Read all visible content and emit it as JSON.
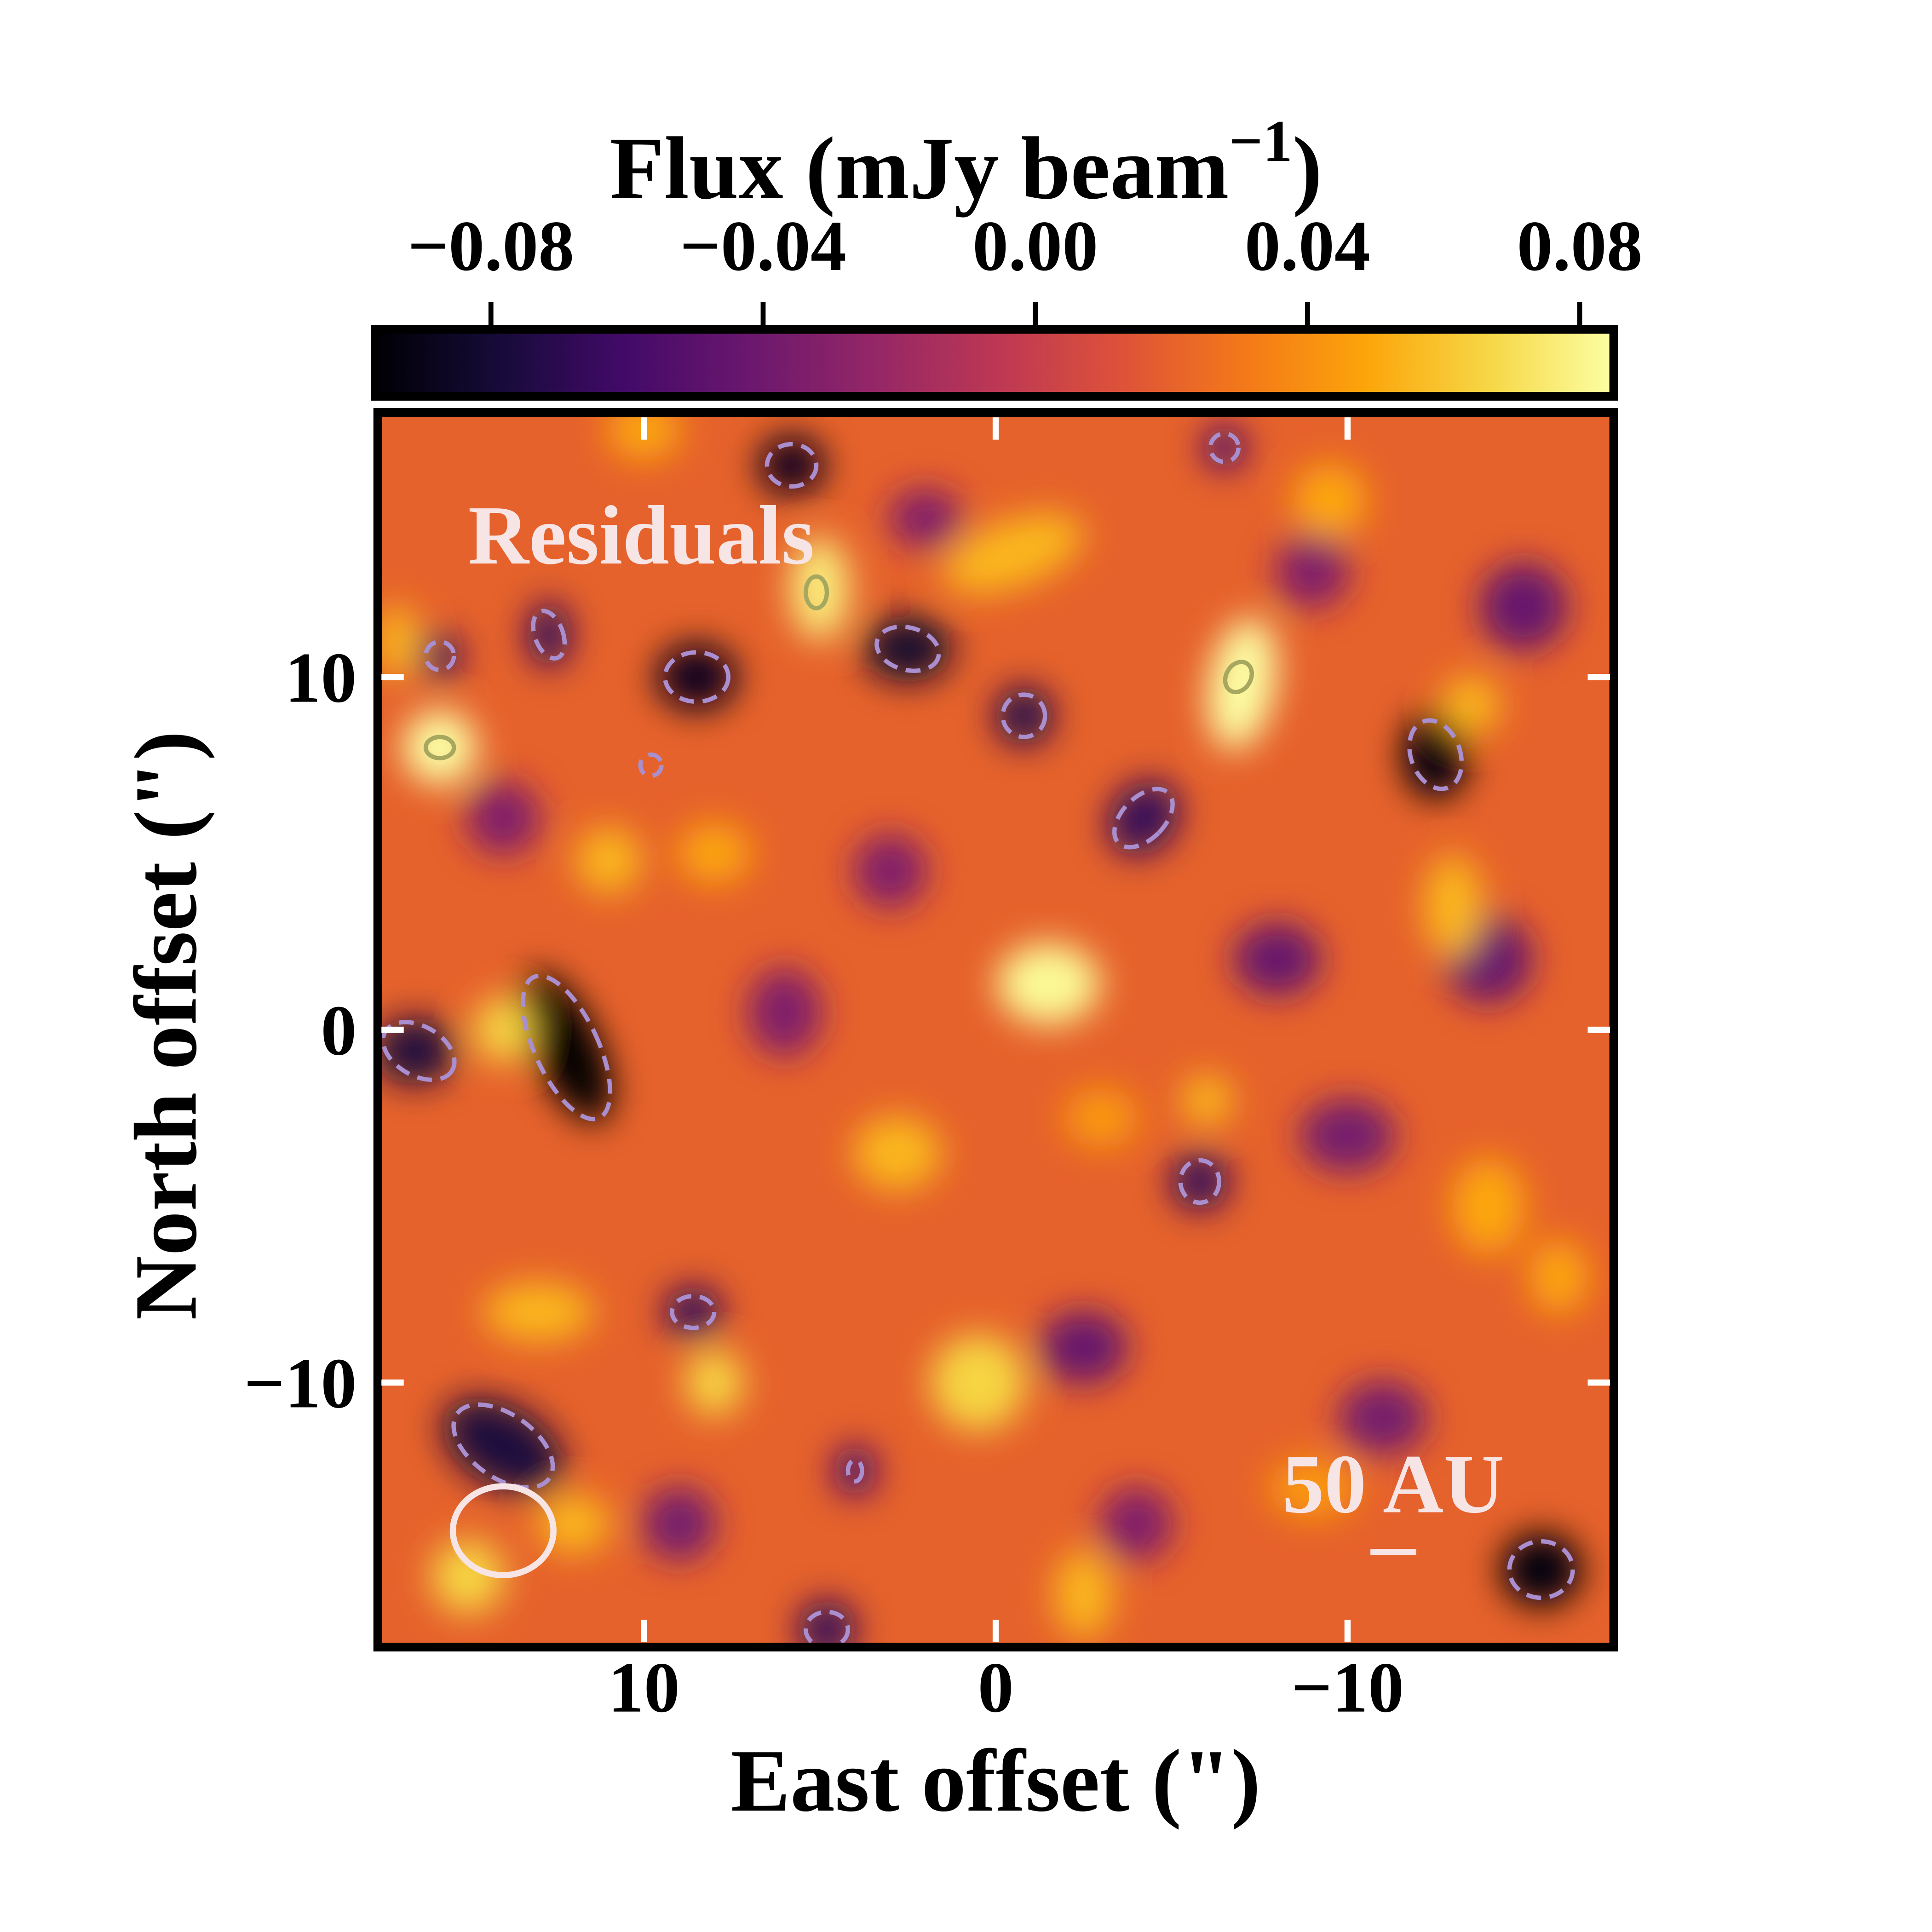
{
  "chart_data": {
    "type": "heatmap",
    "title": "",
    "panel_label": "Residuals",
    "xlabel": "East offset (\")",
    "ylabel": "North offset (\")",
    "xlim": [
      17.6,
      -17.6
    ],
    "ylim": [
      -17.5,
      17.5
    ],
    "xticks": [
      10,
      0,
      -10
    ],
    "xtick_labels": [
      "10",
      "0",
      "−10"
    ],
    "yticks": [
      10,
      0,
      -10
    ],
    "ytick_labels": [
      "10",
      "0",
      "−10"
    ],
    "colorbar": {
      "label": "Flux (mJy beam",
      "label_sup": "−1",
      "label_close": ")",
      "colormap": "inferno",
      "range": [
        -0.097,
        0.085
      ],
      "ticks": [
        -0.08,
        -0.04,
        0.0,
        0.04,
        0.08
      ],
      "tick_labels": [
        "−0.08",
        "−0.04",
        "0.00",
        "0.04",
        "0.08"
      ],
      "placement": "top"
    },
    "background_flux": 0.02,
    "features": [
      {
        "x": 12.2,
        "y": -0.5,
        "flux": -0.097,
        "sx": 0.9,
        "sy": 2.2,
        "rot": -25
      },
      {
        "x": 16.5,
        "y": -0.6,
        "flux": -0.07,
        "sx": 1.1,
        "sy": 0.9,
        "rot": 0
      },
      {
        "x": 8.5,
        "y": 10,
        "flux": -0.08,
        "sx": 1.1,
        "sy": 0.9,
        "rot": 0
      },
      {
        "x": 2.5,
        "y": 10.8,
        "flux": -0.075,
        "sx": 1.2,
        "sy": 0.9,
        "rot": 0
      },
      {
        "x": -12.5,
        "y": 7.8,
        "flux": -0.085,
        "sx": 0.9,
        "sy": 1.2,
        "rot": 0
      },
      {
        "x": -15.5,
        "y": -15.3,
        "flux": -0.085,
        "sx": 1.1,
        "sy": 1.0,
        "rot": 0
      },
      {
        "x": 14,
        "y": -11.8,
        "flux": -0.07,
        "sx": 1.8,
        "sy": 1.1,
        "rot": 30
      },
      {
        "x": 5.8,
        "y": 16,
        "flux": -0.08,
        "sx": 0.9,
        "sy": 0.8,
        "rot": 0
      },
      {
        "x": -0.8,
        "y": 8.9,
        "flux": -0.065,
        "sx": 0.8,
        "sy": 0.8,
        "rot": 0
      },
      {
        "x": -4.2,
        "y": 6,
        "flux": -0.06,
        "sx": 0.9,
        "sy": 1.1,
        "rot": 40
      },
      {
        "x": -5.8,
        "y": -4.3,
        "flux": -0.06,
        "sx": 0.8,
        "sy": 0.8,
        "rot": 0
      },
      {
        "x": 8.6,
        "y": -8,
        "flux": -0.06,
        "sx": 0.8,
        "sy": 0.7,
        "rot": 0
      },
      {
        "x": 4.8,
        "y": -17,
        "flux": -0.06,
        "sx": 0.8,
        "sy": 0.8,
        "rot": 0
      },
      {
        "x": 15.8,
        "y": 10.6,
        "flux": -0.06,
        "sx": 0.6,
        "sy": 0.6,
        "rot": 0
      },
      {
        "x": 12.7,
        "y": 11.2,
        "flux": -0.06,
        "sx": 0.6,
        "sy": 0.9,
        "rot": 0
      },
      {
        "x": -6.5,
        "y": 16.5,
        "flux": -0.05,
        "sx": 0.6,
        "sy": 0.6,
        "rot": 0
      },
      {
        "x": 4,
        "y": -12.5,
        "flux": -0.05,
        "sx": 0.6,
        "sy": 0.7,
        "rot": 0
      },
      {
        "x": -8,
        "y": 2,
        "flux": -0.04,
        "sx": 1.2,
        "sy": 1.0,
        "rot": 0
      },
      {
        "x": -2.5,
        "y": -9,
        "flux": -0.04,
        "sx": 1.2,
        "sy": 1.0,
        "rot": 0
      },
      {
        "x": 6,
        "y": 0.5,
        "flux": -0.03,
        "sx": 1.0,
        "sy": 1.2,
        "rot": 0
      },
      {
        "x": -10,
        "y": -3,
        "flux": -0.035,
        "sx": 1.3,
        "sy": 1.0,
        "rot": 0
      },
      {
        "x": -14,
        "y": 2,
        "flux": -0.04,
        "sx": 1.2,
        "sy": 1.2,
        "rot": 0
      },
      {
        "x": 3,
        "y": 4.5,
        "flux": -0.03,
        "sx": 1.0,
        "sy": 1.0,
        "rot": 0
      },
      {
        "x": -15,
        "y": 12,
        "flux": -0.04,
        "sx": 1.2,
        "sy": 1.2,
        "rot": 0
      },
      {
        "x": 9,
        "y": -14,
        "flux": -0.035,
        "sx": 1.0,
        "sy": 1.0,
        "rot": 0
      },
      {
        "x": -4,
        "y": -14,
        "flux": -0.03,
        "sx": 1.0,
        "sy": 1.0,
        "rot": 0
      },
      {
        "x": -11,
        "y": -11,
        "flux": -0.035,
        "sx": 1.2,
        "sy": 1.0,
        "rot": 0
      },
      {
        "x": 2,
        "y": 14.5,
        "flux": -0.03,
        "sx": 1.0,
        "sy": 0.8,
        "rot": 0
      },
      {
        "x": -9,
        "y": 13,
        "flux": -0.03,
        "sx": 1.0,
        "sy": 1.0,
        "rot": 0
      },
      {
        "x": 14,
        "y": 6,
        "flux": -0.03,
        "sx": 1.0,
        "sy": 1.0,
        "rot": 0
      },
      {
        "x": -1.5,
        "y": 1.3,
        "flux": 0.075,
        "sx": 1.4,
        "sy": 1.1,
        "rot": 0
      },
      {
        "x": -7,
        "y": 9.8,
        "flux": 0.085,
        "sx": 0.9,
        "sy": 1.8,
        "rot": 10
      },
      {
        "x": 15.8,
        "y": 8,
        "flux": 0.085,
        "sx": 1.0,
        "sy": 1.0,
        "rot": 0
      },
      {
        "x": 5,
        "y": 12.5,
        "flux": 0.07,
        "sx": 0.8,
        "sy": 1.4,
        "rot": 0
      },
      {
        "x": 14,
        "y": 0,
        "flux": 0.06,
        "sx": 0.8,
        "sy": 0.9,
        "rot": 0
      },
      {
        "x": -0.5,
        "y": 13.5,
        "flux": 0.05,
        "sx": 2.0,
        "sy": 0.9,
        "rot": -20
      },
      {
        "x": 0.5,
        "y": -10,
        "flux": 0.06,
        "sx": 1.3,
        "sy": 1.3,
        "rot": 0
      },
      {
        "x": 8,
        "y": -10,
        "flux": 0.06,
        "sx": 0.8,
        "sy": 0.9,
        "rot": 0
      },
      {
        "x": 13,
        "y": -8,
        "flux": 0.05,
        "sx": 1.5,
        "sy": 0.8,
        "rot": 0
      },
      {
        "x": 15,
        "y": -15.5,
        "flux": 0.06,
        "sx": 1.0,
        "sy": 1.0,
        "rot": 0
      },
      {
        "x": -2.5,
        "y": -16,
        "flux": 0.05,
        "sx": 0.8,
        "sy": 1.2,
        "rot": 0
      },
      {
        "x": -6,
        "y": -2,
        "flux": 0.05,
        "sx": 0.7,
        "sy": 0.7,
        "rot": 0
      },
      {
        "x": -13,
        "y": 3.5,
        "flux": 0.05,
        "sx": 0.8,
        "sy": 1.4,
        "rot": 0
      },
      {
        "x": -13.5,
        "y": 9.2,
        "flux": 0.05,
        "sx": 0.8,
        "sy": 0.8,
        "rot": 0
      },
      {
        "x": 11,
        "y": 4.8,
        "flux": 0.05,
        "sx": 0.9,
        "sy": 0.9,
        "rot": 0
      },
      {
        "x": 8,
        "y": 5,
        "flux": 0.045,
        "sx": 1.0,
        "sy": 0.8,
        "rot": 0
      },
      {
        "x": 2.8,
        "y": -3.5,
        "flux": 0.05,
        "sx": 1.2,
        "sy": 1.0,
        "rot": 0
      },
      {
        "x": -9,
        "y": -13,
        "flux": 0.04,
        "sx": 1.2,
        "sy": 0.8,
        "rot": 0
      },
      {
        "x": -3,
        "y": -2.5,
        "flux": 0.04,
        "sx": 1.0,
        "sy": 0.8,
        "rot": 0
      },
      {
        "x": 12,
        "y": -14,
        "flux": 0.05,
        "sx": 1.0,
        "sy": 0.8,
        "rot": 0
      },
      {
        "x": 17,
        "y": 11,
        "flux": 0.05,
        "sx": 0.6,
        "sy": 1.0,
        "rot": 0
      },
      {
        "x": 10,
        "y": 17,
        "flux": 0.045,
        "sx": 1.0,
        "sy": 0.8,
        "rot": 0
      },
      {
        "x": -9.5,
        "y": 15,
        "flux": 0.045,
        "sx": 1.0,
        "sy": 1.0,
        "rot": 0
      },
      {
        "x": -14,
        "y": -5,
        "flux": 0.045,
        "sx": 1.0,
        "sy": 1.3,
        "rot": 0
      },
      {
        "x": -16,
        "y": -7,
        "flux": 0.045,
        "sx": 0.8,
        "sy": 1.0,
        "rot": 0
      }
    ],
    "negative_contours": [
      {
        "x": 12.2,
        "y": -0.5,
        "rx": 0.9,
        "ry": 2.2,
        "rot": -25
      },
      {
        "x": 16.4,
        "y": -0.6,
        "rx": 1.1,
        "ry": 0.7,
        "rot": 30
      },
      {
        "x": 8.5,
        "y": 10,
        "rx": 0.9,
        "ry": 0.7,
        "rot": 0
      },
      {
        "x": 2.5,
        "y": 10.8,
        "rx": 0.9,
        "ry": 0.6,
        "rot": 15
      },
      {
        "x": -12.5,
        "y": 7.8,
        "rx": 0.7,
        "ry": 1.0,
        "rot": -20
      },
      {
        "x": -15.5,
        "y": -15.3,
        "rx": 0.9,
        "ry": 0.8,
        "rot": 0
      },
      {
        "x": 14,
        "y": -11.8,
        "rx": 1.6,
        "ry": 0.9,
        "rot": 35
      },
      {
        "x": 5.8,
        "y": 16,
        "rx": 0.7,
        "ry": 0.6,
        "rot": 0
      },
      {
        "x": -0.8,
        "y": 8.9,
        "rx": 0.6,
        "ry": 0.6,
        "rot": 0
      },
      {
        "x": -4.2,
        "y": 6,
        "rx": 0.6,
        "ry": 1.0,
        "rot": 45
      },
      {
        "x": -5.8,
        "y": -4.3,
        "rx": 0.55,
        "ry": 0.6,
        "rot": 0
      },
      {
        "x": 8.6,
        "y": -8,
        "rx": 0.6,
        "ry": 0.45,
        "rot": 0
      },
      {
        "x": 4.8,
        "y": -17,
        "rx": 0.6,
        "ry": 0.5,
        "rot": 0
      },
      {
        "x": 15.8,
        "y": 10.6,
        "rx": 0.4,
        "ry": 0.4,
        "rot": 0
      },
      {
        "x": 12.7,
        "y": 11.2,
        "rx": 0.4,
        "ry": 0.7,
        "rot": -20
      },
      {
        "x": -6.5,
        "y": 16.5,
        "rx": 0.4,
        "ry": 0.4,
        "rot": 0
      },
      {
        "x": 4,
        "y": -12.5,
        "rx": 0.2,
        "ry": 0.3,
        "rot": 0
      },
      {
        "x": 9.8,
        "y": 7.5,
        "rx": 0.3,
        "ry": 0.3,
        "rot": 0
      }
    ],
    "positive_contours": [
      {
        "x": 15.8,
        "y": 8,
        "rx": 0.4,
        "ry": 0.3,
        "rot": 0
      },
      {
        "x": 5.1,
        "y": 12.4,
        "rx": 0.3,
        "ry": 0.45,
        "rot": 0
      },
      {
        "x": -6.9,
        "y": 10,
        "rx": 0.35,
        "ry": 0.45,
        "rot": 30
      }
    ],
    "beam": {
      "x": 14.0,
      "y": -14.2,
      "major": 2.2,
      "minor": 1.8
    },
    "scale_bar": {
      "label": "50 AU",
      "x": -11.3,
      "y": -14.8,
      "length": 1.3
    },
    "colors": {
      "negative_contour": "#a98fd0",
      "positive_contour": "#a7a860",
      "overlay_text": "#f7e4e4"
    }
  }
}
